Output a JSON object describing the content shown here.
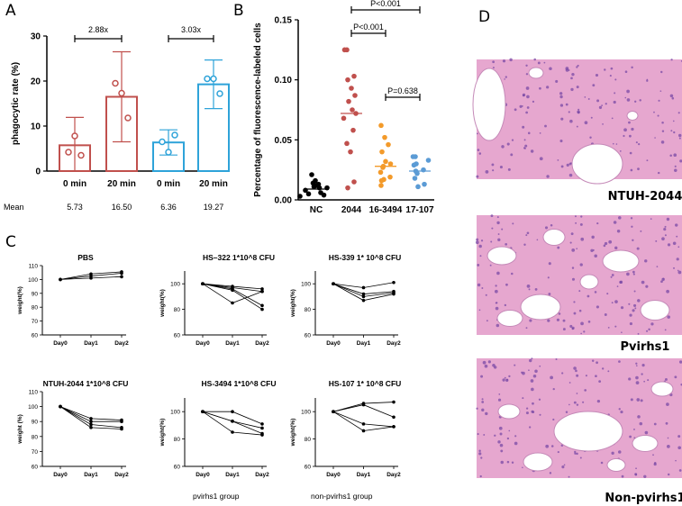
{
  "panels": {
    "A": "A",
    "B": "B",
    "C": "C",
    "D": "D"
  },
  "chart_data": [
    {
      "id": "A",
      "type": "bar",
      "ylabel": "phagocytic rate (%)",
      "ylim": [
        0,
        30
      ],
      "yticks": [
        0,
        10,
        20,
        30
      ],
      "categories": [
        "0 min",
        "20 min",
        "0 min",
        "20 min"
      ],
      "values": [
        5.73,
        16.5,
        6.36,
        19.27
      ],
      "errors": [
        6.2,
        10.0,
        2.8,
        5.4
      ],
      "points": [
        [
          4.2,
          7.8,
          3.5
        ],
        [
          19.5,
          17.3,
          11.8
        ],
        [
          6.5,
          4.2,
          8.0
        ],
        [
          20.5,
          20.5,
          17.2
        ]
      ],
      "colors": [
        "#c0504d",
        "#c0504d",
        "#2ea3d9",
        "#2ea3d9"
      ],
      "mean_label": "Mean",
      "mean_values": [
        "5.73",
        "16.50",
        "6.36",
        "19.27"
      ],
      "fold_changes": [
        "2.88x",
        "3.03x"
      ]
    },
    {
      "id": "B",
      "type": "scatter",
      "ylabel": "Percentage of fluorescence-labeled cells",
      "ylim": [
        0,
        0.15
      ],
      "yticks": [
        "0.00",
        "0.05",
        "0.10",
        "0.15"
      ],
      "categories": [
        "NC",
        "2044",
        "16-3494",
        "17-107"
      ],
      "colors": [
        "#000000",
        "#c0504d",
        "#f39a2a",
        "#5b9bd5"
      ],
      "medians": [
        0.009,
        0.072,
        0.028,
        0.024
      ],
      "groups": [
        [
          0.021,
          0.016,
          0.014,
          0.013,
          0.012,
          0.011,
          0.01,
          0.008,
          0.006,
          0.005,
          0.004,
          0.003,
          0.01
        ],
        [
          0.125,
          0.125,
          0.103,
          0.1,
          0.093,
          0.087,
          0.082,
          0.075,
          0.072,
          0.068,
          0.058,
          0.047,
          0.04,
          0.015,
          0.01
        ],
        [
          0.062,
          0.052,
          0.046,
          0.04,
          0.032,
          0.028,
          0.027,
          0.023,
          0.019,
          0.017,
          0.016,
          0.012,
          0.03
        ],
        [
          0.036,
          0.036,
          0.033,
          0.03,
          0.029,
          0.025,
          0.022,
          0.018,
          0.013,
          0.011,
          0.024
        ]
      ],
      "pvalues": [
        "P<0.001",
        "P<0.001",
        "P=0.638"
      ]
    },
    {
      "id": "C1",
      "type": "line",
      "title": "PBS",
      "ylabel": "weight(%)",
      "ylim": [
        60,
        110
      ],
      "yticks": [
        60,
        70,
        80,
        90,
        100,
        110
      ],
      "x": [
        "Day0",
        "Day1",
        "Day2"
      ],
      "series": [
        {
          "values": [
            100,
            102.5,
            104.5
          ]
        },
        {
          "values": [
            100,
            104,
            105.5
          ]
        },
        {
          "values": [
            100,
            101,
            102
          ]
        }
      ]
    },
    {
      "id": "C2",
      "type": "line",
      "title": "HS–322 1*10^8 CFU",
      "ylabel": "weight(%)",
      "ylim": [
        60,
        110
      ],
      "yticks": [
        60,
        80,
        100
      ],
      "x": [
        "Day0",
        "Day1",
        "Day2"
      ],
      "series": [
        {
          "values": [
            100,
            98,
            96
          ]
        },
        {
          "values": [
            100,
            97,
            94
          ]
        },
        {
          "values": [
            100,
            96,
            83
          ]
        },
        {
          "values": [
            100,
            95,
            80
          ]
        },
        {
          "values": [
            100,
            85,
            94
          ]
        }
      ]
    },
    {
      "id": "C3",
      "type": "line",
      "title": "HS-339 1* 10^8 CFU",
      "ylabel": "weight(%)",
      "ylim": [
        60,
        110
      ],
      "yticks": [
        60,
        80,
        100
      ],
      "x": [
        "Day0",
        "Day1",
        "Day2"
      ],
      "series": [
        {
          "values": [
            100,
            97,
            101
          ]
        },
        {
          "values": [
            100,
            92,
            94
          ]
        },
        {
          "values": [
            100,
            90,
            93
          ]
        },
        {
          "values": [
            100,
            87,
            92
          ]
        }
      ]
    },
    {
      "id": "C4",
      "type": "line",
      "title": "NTUH-2044  1*10^8 CFU",
      "ylabel": "weight (%)",
      "ylim": [
        60,
        110
      ],
      "yticks": [
        60,
        70,
        80,
        90,
        100,
        110
      ],
      "x": [
        "Day0",
        "Day1",
        "Day2"
      ],
      "series": [
        {
          "values": [
            100,
            92,
            91
          ]
        },
        {
          "values": [
            100,
            90,
            90
          ]
        },
        {
          "values": [
            100,
            88,
            86
          ]
        },
        {
          "values": [
            100,
            86,
            85
          ]
        }
      ]
    },
    {
      "id": "C5",
      "type": "line",
      "title": "HS-3494 1*10^8 CFU",
      "ylabel": "weight(%)",
      "ylim": [
        60,
        110
      ],
      "yticks": [
        60,
        80,
        100
      ],
      "x": [
        "Day0",
        "Day1",
        "Day2"
      ],
      "series": [
        {
          "values": [
            100,
            100,
            91
          ]
        },
        {
          "values": [
            100,
            93,
            88
          ]
        },
        {
          "values": [
            100,
            93,
            84
          ]
        },
        {
          "values": [
            100,
            85,
            83
          ]
        }
      ]
    },
    {
      "id": "C6",
      "type": "line",
      "title": "HS-107 1* 10^8 CFU",
      "ylabel": "weight(%)",
      "ylim": [
        60,
        110
      ],
      "yticks": [
        60,
        80,
        100
      ],
      "x": [
        "Day0",
        "Day1",
        "Day2"
      ],
      "series": [
        {
          "values": [
            100,
            106,
            107
          ]
        },
        {
          "values": [
            100,
            105,
            96
          ]
        },
        {
          "values": [
            100,
            91,
            89
          ]
        },
        {
          "values": [
            100,
            86,
            89
          ]
        }
      ]
    }
  ],
  "group_labels": [
    "pvirhs1 group",
    "non-pvirhs1 group"
  ],
  "histology": {
    "captions": [
      "NTUH-2044",
      "Pvirhs1",
      "Non-pvirhs1"
    ],
    "tissue_color": "#e6a7cf",
    "nuclei_color": "#7a4aa6",
    "space_color": "#ffffff"
  }
}
